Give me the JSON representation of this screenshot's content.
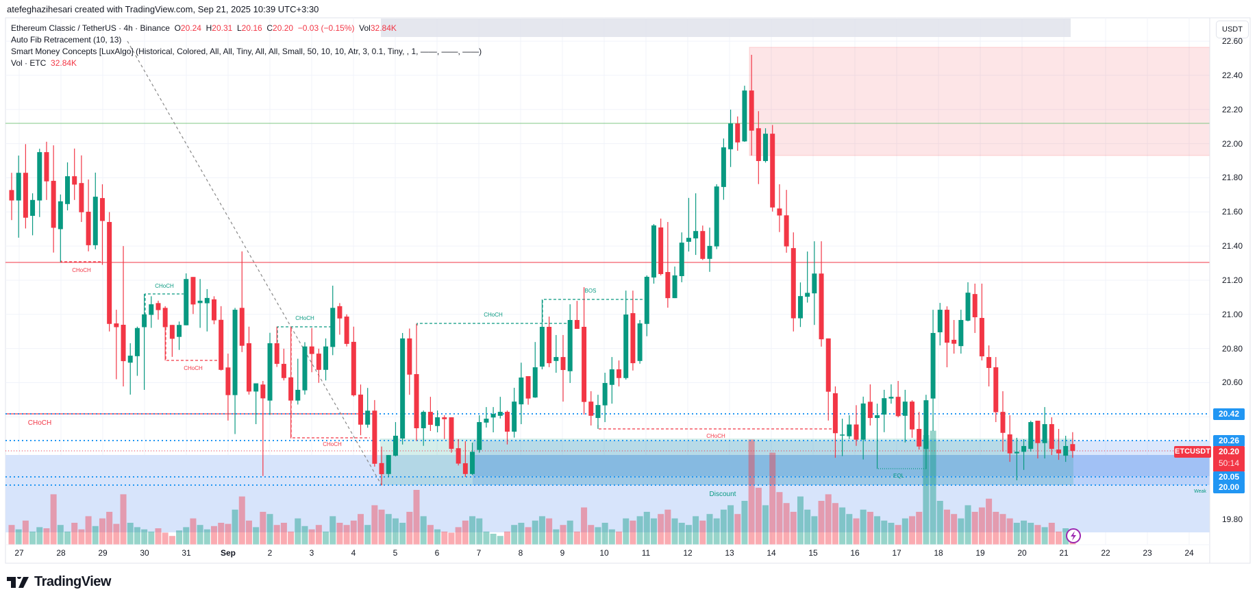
{
  "header": {
    "credit": "atefeghazihesari created with TradingView.com, Sep 21, 2025 10:39 UTC+3:30"
  },
  "legend": {
    "symbol": "Ethereum Classic / TetherUS · 4h · Binance",
    "o_label": "O",
    "o": "20.24",
    "h_label": "H",
    "h": "20.31",
    "l_label": "L",
    "l": "20.16",
    "c_label": "C",
    "c": "20.20",
    "change": "−0.03 (−0.15%)",
    "vol_label": "Vol",
    "vol": "32.84K",
    "indicator1": "Auto Fib Retracement (10, 13)",
    "indicator2": "Smart Money Concepts [LuxAlgo] (Historical, Colored, All, All, Tiny, All, All, Small, 50, 10, 10, Atr, 3, 0.1, Tiny, , 1, ——, ——, ——)",
    "indicator3_label": "Vol · ETC",
    "indicator3_value": "32.84K"
  },
  "axis": {
    "currency": "USDT",
    "price_ticks": [
      "19.80",
      "20.60",
      "20.80",
      "21.00",
      "21.20",
      "21.40",
      "21.60",
      "21.80",
      "22.00",
      "22.20",
      "22.40",
      "22.60"
    ],
    "level_tags": [
      "20.42",
      "20.26",
      "20.05",
      "20.00"
    ],
    "symbol_tag": "ETCUSDT",
    "last_price": "20.20",
    "countdown": "50:14",
    "time_labels": [
      "27",
      "28",
      "29",
      "30",
      "31",
      "Sep",
      "2",
      "3",
      "4",
      "5",
      "6",
      "7",
      "8",
      "9",
      "10",
      "11",
      "12",
      "13",
      "14",
      "15",
      "16",
      "17",
      "18",
      "19",
      "20",
      "21",
      "22",
      "23",
      "24"
    ]
  },
  "annotations": {
    "choch1": "CHoCH",
    "choch2": "CHoCH",
    "choch3": "CHoCH",
    "choch4": "CHoCH",
    "choch5": "CHoCH",
    "choch6": "CHoCH",
    "choch7": "CHoCH",
    "choch8": "CHoCH",
    "bos": "BOS",
    "discount": "Discount",
    "weak": "Weak",
    "eql": "EQL"
  },
  "colors": {
    "up": "#089981",
    "down": "#f23645",
    "level": "#2196f3",
    "supply": "#f23645"
  },
  "branding": {
    "logo": "TradingView"
  },
  "chart_data": {
    "type": "candlestick",
    "title": "Ethereum Classic / TetherUS · 4h · Binance",
    "ylim": [
      19.7,
      22.65
    ],
    "y_step": 0.2,
    "x_start": "Aug 26 2025 20:00",
    "interval": "4h",
    "horizontal_levels": {
      "green": 22.12,
      "red": 21.3,
      "red_choch": 20.42,
      "dotted": [
        20.42,
        20.26,
        20.05,
        20.0
      ],
      "last": 20.2
    },
    "supply_zone": [
      21.93,
      22.52
    ],
    "candles_ohlc": [
      [
        21.728,
        21.829,
        21.552,
        21.667
      ],
      [
        21.667,
        21.93,
        21.449,
        21.829
      ],
      [
        21.829,
        21.997,
        21.503,
        21.566
      ],
      [
        21.577,
        21.709,
        21.463,
        21.67
      ],
      [
        21.667,
        21.97,
        21.57,
        21.95
      ],
      [
        21.95,
        22.011,
        21.67,
        21.779
      ],
      [
        21.782,
        21.99,
        21.362,
        21.507
      ],
      [
        21.499,
        21.702,
        21.306,
        21.662
      ],
      [
        21.646,
        21.89,
        21.609,
        21.809
      ],
      [
        21.809,
        21.971,
        21.67,
        21.76
      ],
      [
        21.769,
        21.931,
        21.541,
        21.598
      ],
      [
        21.601,
        21.79,
        21.369,
        21.405
      ],
      [
        21.405,
        21.83,
        21.381,
        21.689
      ],
      [
        21.681,
        21.762,
        21.29,
        21.547
      ],
      [
        21.541,
        21.599,
        20.9,
        20.944
      ],
      [
        20.947,
        21.027,
        20.62,
        20.925
      ],
      [
        20.939,
        21.4,
        20.578,
        20.726
      ],
      [
        20.717,
        20.831,
        20.53,
        20.758
      ],
      [
        20.755,
        20.928,
        20.64,
        20.92
      ],
      [
        20.925,
        21.12,
        20.558,
        21.0
      ],
      [
        20.997,
        21.106,
        20.921,
        21.059
      ],
      [
        21.066,
        21.08,
        20.969,
        21.025
      ],
      [
        21.038,
        21.048,
        20.73,
        20.925
      ],
      [
        20.938,
        20.938,
        20.751,
        20.857
      ],
      [
        20.868,
        20.958,
        20.792,
        20.938
      ],
      [
        20.936,
        21.24,
        20.936,
        21.207
      ],
      [
        21.219,
        21.219,
        21.002,
        21.058
      ],
      [
        21.066,
        21.207,
        20.921,
        21.08
      ],
      [
        21.065,
        21.148,
        20.9,
        21.096
      ],
      [
        21.088,
        21.106,
        20.942,
        20.965
      ],
      [
        20.968,
        21.048,
        20.671,
        20.675
      ],
      [
        20.689,
        20.77,
        20.378,
        20.527
      ],
      [
        20.527,
        21.038,
        20.299,
        21.027
      ],
      [
        21.038,
        21.369,
        20.779,
        20.816
      ],
      [
        20.831,
        20.928,
        20.53,
        20.548
      ],
      [
        20.548,
        20.596,
        20.357,
        20.596
      ],
      [
        20.589,
        20.61,
        20.053,
        20.508
      ],
      [
        20.495,
        20.892,
        20.411,
        20.831
      ],
      [
        20.831,
        20.928,
        20.692,
        20.71
      ],
      [
        20.71,
        20.799,
        20.613,
        20.627
      ],
      [
        20.631,
        20.928,
        20.274,
        20.495
      ],
      [
        20.495,
        20.74,
        20.472,
        20.558
      ],
      [
        20.555,
        20.837,
        20.53,
        20.812
      ],
      [
        20.812,
        20.92,
        20.661,
        20.768
      ],
      [
        20.77,
        20.799,
        20.599,
        20.675
      ],
      [
        20.675,
        20.859,
        20.613,
        20.812
      ],
      [
        20.809,
        21.168,
        20.761,
        21.038
      ],
      [
        21.048,
        21.066,
        20.881,
        20.976
      ],
      [
        20.987,
        21.0,
        20.812,
        20.827
      ],
      [
        20.839,
        20.928,
        20.519,
        20.526
      ],
      [
        20.53,
        20.589,
        20.292,
        20.354
      ],
      [
        20.354,
        20.569,
        20.336,
        20.436
      ],
      [
        20.436,
        20.498,
        20.108,
        20.125
      ],
      [
        20.129,
        20.226,
        19.998,
        20.064
      ],
      [
        20.065,
        20.176,
        20.048,
        20.176
      ],
      [
        20.172,
        20.369,
        20.168,
        20.289
      ],
      [
        20.273,
        20.891,
        20.238,
        20.859
      ],
      [
        20.859,
        20.917,
        20.529,
        20.647
      ],
      [
        20.65,
        20.945,
        20.259,
        20.333
      ],
      [
        20.333,
        20.437,
        20.23,
        20.429
      ],
      [
        20.429,
        20.517,
        20.317,
        20.353
      ],
      [
        20.346,
        20.437,
        20.309,
        20.397
      ],
      [
        20.397,
        20.409,
        20.27,
        20.386
      ],
      [
        20.397,
        20.397,
        20.19,
        20.212
      ],
      [
        20.216,
        20.269,
        20.115,
        20.126
      ],
      [
        20.128,
        20.257,
        20.048,
        20.065
      ],
      [
        20.065,
        20.249,
        20.059,
        20.195
      ],
      [
        20.206,
        20.409,
        20.19,
        20.369
      ],
      [
        20.366,
        20.457,
        20.337,
        20.389
      ],
      [
        20.396,
        20.457,
        20.309,
        20.417
      ],
      [
        20.406,
        20.517,
        20.39,
        20.429
      ],
      [
        20.429,
        20.437,
        20.238,
        20.313
      ],
      [
        20.313,
        20.57,
        20.278,
        20.489
      ],
      [
        20.473,
        20.717,
        20.357,
        20.63
      ],
      [
        20.638,
        20.638,
        20.471,
        20.507
      ],
      [
        20.513,
        20.838,
        20.511,
        20.69
      ],
      [
        20.694,
        21.087,
        20.678,
        20.927
      ],
      [
        20.927,
        20.987,
        20.691,
        20.714
      ],
      [
        20.727,
        20.879,
        20.658,
        20.75
      ],
      [
        20.75,
        20.879,
        20.489,
        20.674
      ],
      [
        20.667,
        21.059,
        20.598,
        20.967
      ],
      [
        20.967,
        21.079,
        20.915,
        20.915
      ],
      [
        20.927,
        21.159,
        20.413,
        20.487
      ],
      [
        20.489,
        20.55,
        20.349,
        20.406
      ],
      [
        20.393,
        20.529,
        20.329,
        20.469
      ],
      [
        20.467,
        20.658,
        20.369,
        20.598
      ],
      [
        20.587,
        20.75,
        20.477,
        20.678
      ],
      [
        20.678,
        20.73,
        20.578,
        20.627
      ],
      [
        20.627,
        21.139,
        20.618,
        20.999
      ],
      [
        21.007,
        21.139,
        20.671,
        20.714
      ],
      [
        20.727,
        20.967,
        20.711,
        20.947
      ],
      [
        20.944,
        21.228,
        20.872,
        21.22
      ],
      [
        21.216,
        21.529,
        21.18,
        21.521
      ],
      [
        21.509,
        21.561,
        21.228,
        21.236
      ],
      [
        21.248,
        21.541,
        21.039,
        21.095
      ],
      [
        21.095,
        21.28,
        21.095,
        21.228
      ],
      [
        21.224,
        21.48,
        21.188,
        21.42
      ],
      [
        21.425,
        21.682,
        21.368,
        21.448
      ],
      [
        21.445,
        21.709,
        21.348,
        21.488
      ],
      [
        21.488,
        21.52,
        21.318,
        21.325
      ],
      [
        21.325,
        21.508,
        21.249,
        21.401
      ],
      [
        21.398,
        21.762,
        21.382,
        21.749
      ],
      [
        21.746,
        22.03,
        21.671,
        21.978
      ],
      [
        21.967,
        22.199,
        21.863,
        22.118
      ],
      [
        22.118,
        22.159,
        21.958,
        22.007
      ],
      [
        22.013,
        22.339,
        22.01,
        22.311
      ],
      [
        22.311,
        22.52,
        21.93,
        22.076
      ],
      [
        22.09,
        22.19,
        21.763,
        21.898
      ],
      [
        21.898,
        22.09,
        21.889,
        22.058
      ],
      [
        22.058,
        22.109,
        21.602,
        21.626
      ],
      [
        21.62,
        21.762,
        21.482,
        21.579
      ],
      [
        21.58,
        21.729,
        21.361,
        21.398
      ],
      [
        21.388,
        21.48,
        20.9,
        20.977
      ],
      [
        20.977,
        21.187,
        20.926,
        21.107
      ],
      [
        21.103,
        21.368,
        21.069,
        21.126
      ],
      [
        21.123,
        21.428,
        20.938,
        21.239
      ],
      [
        21.239,
        21.428,
        20.811,
        20.854
      ],
      [
        20.859,
        20.859,
        20.378,
        20.547
      ],
      [
        20.538,
        20.578,
        20.16,
        20.304
      ],
      [
        20.293,
        20.389,
        20.17,
        20.296
      ],
      [
        20.286,
        20.409,
        20.27,
        20.355
      ],
      [
        20.355,
        20.468,
        20.23,
        20.266
      ],
      [
        20.266,
        20.518,
        20.15,
        20.478
      ],
      [
        20.488,
        20.59,
        20.349,
        20.393
      ],
      [
        20.393,
        20.477,
        20.095,
        20.409
      ],
      [
        20.413,
        20.558,
        20.31,
        20.509
      ],
      [
        20.507,
        20.59,
        20.477,
        20.517
      ],
      [
        20.517,
        20.61,
        20.397,
        20.404
      ],
      [
        20.406,
        20.558,
        20.25,
        20.489
      ],
      [
        20.489,
        20.497,
        20.277,
        20.326
      ],
      [
        20.329,
        20.429,
        20.208,
        20.226
      ],
      [
        20.212,
        20.529,
        20.095,
        20.497
      ],
      [
        20.507,
        21.027,
        20.317,
        20.891
      ],
      [
        20.895,
        21.067,
        20.818,
        21.027
      ],
      [
        21.027,
        21.047,
        20.69,
        20.834
      ],
      [
        20.851,
        20.967,
        20.77,
        20.828
      ],
      [
        20.814,
        21.027,
        20.77,
        20.967
      ],
      [
        20.963,
        21.188,
        20.959,
        21.127
      ],
      [
        21.119,
        21.18,
        20.891,
        20.983
      ],
      [
        20.979,
        21.18,
        20.73,
        20.754
      ],
      [
        20.75,
        20.818,
        20.578,
        20.686
      ],
      [
        20.69,
        20.75,
        20.369,
        20.427
      ],
      [
        20.429,
        20.55,
        20.196,
        20.306
      ],
      [
        20.297,
        20.409,
        20.136,
        20.186
      ],
      [
        20.186,
        20.277,
        20.028,
        20.195
      ],
      [
        20.195,
        20.269,
        20.089,
        20.229
      ],
      [
        20.212,
        20.377,
        20.196,
        20.369
      ],
      [
        20.377,
        20.377,
        20.156,
        20.246
      ],
      [
        20.246,
        20.457,
        20.156,
        20.357
      ],
      [
        20.357,
        20.397,
        20.176,
        20.212
      ],
      [
        20.208,
        20.329,
        20.148,
        20.186
      ],
      [
        20.172,
        20.289,
        20.136,
        20.229
      ],
      [
        20.24,
        20.31,
        20.16,
        20.2
      ]
    ],
    "volume_k": [
      90,
      70,
      110,
      60,
      80,
      75,
      230,
      90,
      60,
      100,
      70,
      130,
      85,
      120,
      150,
      95,
      230,
      100,
      80,
      70,
      60,
      75,
      55,
      40,
      65,
      80,
      120,
      90,
      70,
      85,
      100,
      95,
      160,
      220,
      110,
      80,
      150,
      140,
      90,
      100,
      60,
      120,
      85,
      70,
      90,
      60,
      130,
      100,
      90,
      110,
      140,
      90,
      180,
      160,
      140,
      120,
      100,
      150,
      250,
      130,
      90,
      70,
      60,
      55,
      80,
      110,
      130,
      120,
      60,
      50,
      40,
      60,
      90,
      100,
      80,
      110,
      130,
      120,
      70,
      90,
      110,
      60,
      170,
      90,
      80,
      100,
      70,
      60,
      120,
      110,
      130,
      150,
      120,
      140,
      160,
      120,
      100,
      90,
      130,
      110,
      140,
      120,
      160,
      180,
      140,
      200,
      480,
      260,
      180,
      420,
      240,
      190,
      150,
      220,
      160,
      130,
      200,
      230,
      190,
      170,
      140,
      120,
      160,
      150,
      130,
      110,
      100,
      90,
      120,
      130,
      150,
      500,
      520,
      200,
      160,
      140,
      120,
      180,
      150,
      170,
      210,
      150,
      140,
      120,
      100,
      110,
      100,
      90,
      80,
      100,
      60,
      75,
      33
    ]
  }
}
